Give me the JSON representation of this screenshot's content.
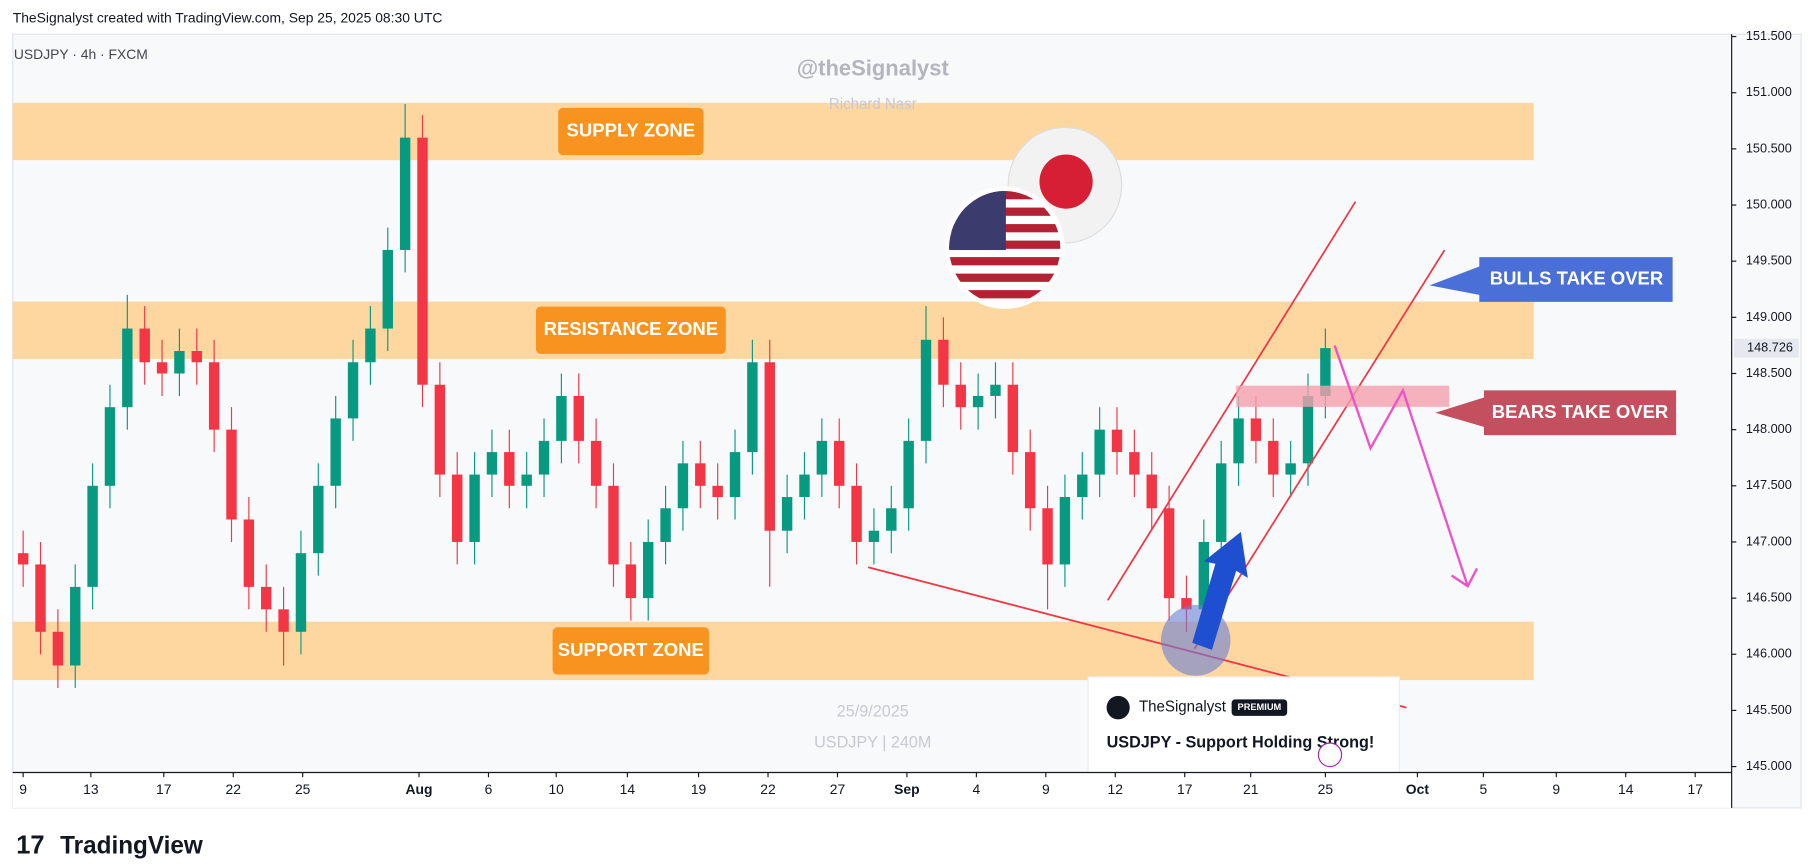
{
  "header": "TheSignalyst created with TradingView.com, Sep 25, 2025 08:30 UTC",
  "footer": "TradingView",
  "watermark": {
    "handle": "@theSignalyst",
    "author": "Richard Nasr",
    "date": "25/9/2025",
    "symbol": "USDJPY | 240M"
  },
  "card": {
    "author": "TheSignalyst",
    "badge": "PREMIUM",
    "title": "USDJPY - Support Holding Strong!"
  },
  "annotations": {
    "bulls": "BULLS TAKE OVER",
    "bears": "BEARS TAKE OVER"
  },
  "chart_data": {
    "type": "candlestick",
    "title": "USDJPY · 4h · FXCM",
    "up_color": "#089981",
    "down_color": "#f23645",
    "last_price": 148.726,
    "last_price_label": "148.726",
    "xlim": [
      -0.6,
      98.4
    ],
    "ylim": [
      145.0,
      151.5
    ],
    "xticks": [
      {
        "value": 0,
        "label": "9"
      },
      {
        "value": 3.9,
        "label": "13"
      },
      {
        "value": 8.1,
        "label": "17"
      },
      {
        "value": 12.1,
        "label": "22"
      },
      {
        "value": 16.1,
        "label": "25"
      },
      {
        "value": 22.8,
        "label": "Aug"
      },
      {
        "value": 26.8,
        "label": "6"
      },
      {
        "value": 30.7,
        "label": "10"
      },
      {
        "value": 34.8,
        "label": "14"
      },
      {
        "value": 38.9,
        "label": "19"
      },
      {
        "value": 42.9,
        "label": "22"
      },
      {
        "value": 46.9,
        "label": "27"
      },
      {
        "value": 50.9,
        "label": "Sep"
      },
      {
        "value": 54.9,
        "label": "4"
      },
      {
        "value": 58.9,
        "label": "9"
      },
      {
        "value": 62.9,
        "label": "12"
      },
      {
        "value": 66.9,
        "label": "17"
      },
      {
        "value": 70.7,
        "label": "21"
      },
      {
        "value": 75,
        "label": "25"
      },
      {
        "value": 80.3,
        "label": "Oct"
      },
      {
        "value": 84.1,
        "label": "5"
      },
      {
        "value": 88.3,
        "label": "9"
      },
      {
        "value": 92.3,
        "label": "14"
      },
      {
        "value": 96.3,
        "label": "17"
      }
    ],
    "yticks": [
      {
        "value": 145.0,
        "label": "145.000"
      },
      {
        "value": 145.5,
        "label": "145.500"
      },
      {
        "value": 146.0,
        "label": "146.000"
      },
      {
        "value": 146.5,
        "label": "146.500"
      },
      {
        "value": 147.0,
        "label": "147.000"
      },
      {
        "value": 147.5,
        "label": "147.500"
      },
      {
        "value": 148.0,
        "label": "148.000"
      },
      {
        "value": 148.5,
        "label": "148.500"
      },
      {
        "value": 149.0,
        "label": "149.000"
      },
      {
        "value": 149.5,
        "label": "149.500"
      },
      {
        "value": 150.0,
        "label": "150.000"
      },
      {
        "value": 150.5,
        "label": "150.500"
      },
      {
        "value": 151.0,
        "label": "151.000"
      },
      {
        "value": 151.5,
        "label": "151.500"
      }
    ],
    "zones": [
      {
        "label": "SUPPLY ZONE",
        "low": 150.4,
        "high": 150.91,
        "start": -0.6,
        "end": 87
      },
      {
        "label": "RESISTANCE ZONE",
        "low": 148.63,
        "high": 149.14,
        "start": -0.6,
        "end": 87
      },
      {
        "label": "SUPPORT ZONE",
        "low": 145.77,
        "high": 146.29,
        "start": -0.6,
        "end": 87
      }
    ],
    "x": [
      0,
      1,
      2,
      3,
      4,
      5,
      6,
      7,
      8,
      9,
      10,
      11,
      12,
      13,
      14,
      15,
      16,
      17,
      18,
      19,
      20,
      21,
      22,
      23,
      24,
      25,
      26,
      27,
      28,
      29,
      30,
      31,
      32,
      33,
      34,
      35,
      36,
      37,
      38,
      39,
      40,
      41,
      42,
      43,
      44,
      45,
      46,
      47,
      48,
      49,
      50,
      51,
      52,
      53,
      54,
      55,
      56,
      57,
      58,
      59,
      60,
      61,
      62,
      63,
      64,
      65,
      66,
      67,
      68,
      69,
      70,
      71,
      72,
      73,
      74,
      75
    ],
    "open": [
      146.9,
      146.8,
      146.2,
      145.9,
      146.6,
      147.5,
      148.2,
      148.9,
      148.6,
      148.5,
      148.7,
      148.6,
      148.0,
      147.2,
      146.6,
      146.4,
      146.2,
      146.9,
      147.5,
      148.1,
      148.6,
      148.9,
      149.6,
      150.6,
      148.4,
      147.6,
      147.0,
      147.6,
      147.8,
      147.5,
      147.6,
      147.9,
      148.3,
      147.9,
      147.5,
      146.8,
      146.5,
      147.0,
      147.3,
      147.7,
      147.5,
      147.4,
      147.8,
      148.6,
      147.1,
      147.4,
      147.6,
      147.9,
      147.5,
      147.0,
      147.1,
      147.3,
      147.9,
      148.8,
      148.4,
      148.2,
      148.3,
      148.4,
      147.8,
      147.3,
      146.8,
      147.4,
      147.6,
      148.0,
      147.8,
      147.6,
      147.3,
      146.5,
      146.4,
      147.0,
      147.7,
      148.1,
      147.9,
      147.6,
      147.7,
      148.3
    ],
    "high": [
      147.1,
      147.0,
      146.4,
      146.8,
      147.7,
      148.4,
      149.2,
      149.1,
      148.8,
      148.9,
      148.9,
      148.8,
      148.2,
      147.4,
      146.8,
      146.6,
      147.1,
      147.7,
      148.3,
      148.8,
      149.1,
      149.8,
      150.9,
      150.8,
      148.6,
      147.8,
      147.8,
      148.0,
      148.0,
      147.8,
      148.1,
      148.5,
      148.5,
      148.1,
      147.7,
      147.0,
      147.2,
      147.5,
      147.9,
      147.9,
      147.7,
      148.0,
      148.8,
      148.8,
      147.6,
      147.8,
      148.1,
      148.1,
      147.7,
      147.3,
      147.5,
      148.1,
      149.1,
      149.0,
      148.6,
      148.5,
      148.6,
      148.6,
      148.0,
      147.5,
      147.6,
      147.8,
      148.2,
      148.2,
      148.0,
      147.8,
      147.5,
      146.7,
      147.2,
      147.9,
      148.3,
      148.3,
      148.1,
      147.9,
      148.5,
      148.9
    ],
    "low": [
      146.6,
      146.0,
      145.7,
      145.7,
      146.4,
      147.3,
      148.0,
      148.4,
      148.3,
      148.3,
      148.4,
      147.8,
      147.0,
      146.4,
      146.2,
      145.9,
      146.0,
      146.7,
      147.3,
      147.9,
      148.4,
      148.7,
      149.4,
      148.2,
      147.4,
      146.8,
      146.8,
      147.4,
      147.3,
      147.3,
      147.4,
      147.7,
      147.7,
      147.3,
      146.6,
      146.3,
      146.3,
      146.8,
      147.1,
      147.3,
      147.2,
      147.2,
      147.6,
      146.6,
      146.9,
      147.2,
      147.4,
      147.3,
      146.8,
      146.8,
      146.9,
      147.1,
      147.7,
      148.2,
      148.0,
      148.0,
      148.1,
      147.6,
      147.1,
      146.4,
      146.6,
      147.2,
      147.4,
      147.6,
      147.4,
      147.1,
      146.3,
      146.2,
      146.2,
      146.8,
      147.5,
      147.7,
      147.4,
      147.4,
      147.5,
      148.1
    ],
    "close": [
      146.8,
      146.2,
      145.9,
      146.6,
      147.5,
      148.2,
      148.9,
      148.6,
      148.5,
      148.7,
      148.6,
      148.0,
      147.2,
      146.6,
      146.4,
      146.2,
      146.9,
      147.5,
      148.1,
      148.6,
      148.9,
      149.6,
      150.6,
      148.4,
      147.6,
      147.0,
      147.6,
      147.8,
      147.5,
      147.6,
      147.9,
      148.3,
      147.9,
      147.5,
      146.8,
      146.5,
      147.0,
      147.3,
      147.7,
      147.5,
      147.4,
      147.8,
      148.6,
      147.1,
      147.4,
      147.6,
      147.9,
      147.5,
      147.0,
      147.1,
      147.3,
      147.9,
      148.8,
      148.4,
      148.2,
      148.3,
      148.4,
      147.8,
      147.3,
      146.8,
      147.4,
      147.6,
      148.0,
      147.8,
      147.6,
      147.3,
      146.5,
      146.4,
      147.0,
      147.7,
      148.1,
      147.9,
      147.6,
      147.7,
      148.3,
      148.726
    ]
  }
}
